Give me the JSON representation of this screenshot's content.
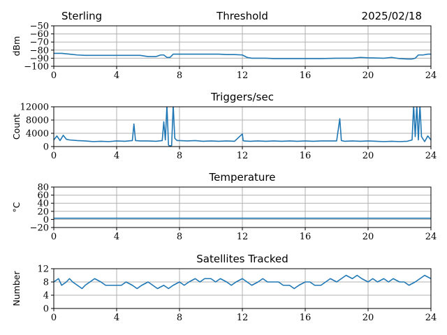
{
  "header": {
    "station": "Sterling",
    "date": "2025/02/18"
  },
  "style": {
    "line_color": "#1f77b4",
    "grid_color": "#b0b0b0"
  },
  "chart_data": [
    {
      "type": "line",
      "title": "Threshold",
      "xlabel": "",
      "ylabel": "dBm",
      "xlim": [
        0,
        24
      ],
      "ylim": [
        -100,
        -50
      ],
      "xticks": [
        0,
        4,
        8,
        12,
        16,
        20,
        24
      ],
      "yticks": [
        -100,
        -90,
        -80,
        -70,
        -60,
        -50
      ],
      "ytick_labels": [
        "−100",
        "−90",
        "−80",
        "−70",
        "−60",
        "−50"
      ],
      "grid": true,
      "series": [
        {
          "x": [
            0,
            0.5,
            1,
            1.5,
            2,
            2.5,
            3,
            3.5,
            4,
            4.5,
            5,
            5.5,
            6,
            6.5,
            6.8,
            7,
            7.2,
            7.4,
            7.6,
            7.8,
            8,
            8.5,
            9,
            9.5,
            10,
            10.5,
            11,
            11.5,
            12,
            12.3,
            12.6,
            13,
            13.5,
            14,
            15,
            16,
            17,
            18,
            19,
            19.5,
            20,
            21,
            21.5,
            22,
            22.5,
            22.8,
            23,
            23.2,
            23.5,
            23.8,
            24
          ],
          "values": [
            -84,
            -84,
            -85,
            -86,
            -86.5,
            -86.5,
            -86.5,
            -86.5,
            -86.5,
            -86.5,
            -86.5,
            -86.5,
            -88,
            -88,
            -86,
            -86,
            -89,
            -89,
            -85,
            -85,
            -85,
            -85,
            -85,
            -85,
            -85,
            -85,
            -85.5,
            -85.5,
            -86,
            -89,
            -90,
            -90,
            -90,
            -90.5,
            -90.5,
            -90.5,
            -90.5,
            -90,
            -90,
            -89,
            -89.5,
            -90,
            -89,
            -90.5,
            -91,
            -91,
            -90,
            -86,
            -86,
            -85,
            -85
          ]
        }
      ]
    },
    {
      "type": "line",
      "title": "Triggers/sec",
      "xlabel": "",
      "ylabel": "Count",
      "xlim": [
        0,
        24
      ],
      "ylim": [
        0,
        12000
      ],
      "xticks": [
        0,
        4,
        8,
        12,
        16,
        20,
        24
      ],
      "yticks": [
        0,
        4000,
        8000,
        12000
      ],
      "ytick_labels": [
        "0",
        "4000",
        "8000",
        "12000"
      ],
      "grid": true,
      "series": [
        {
          "x": [
            0,
            0.2,
            0.4,
            0.6,
            0.8,
            1,
            1.5,
            2,
            2.5,
            3,
            3.5,
            4,
            4.5,
            5,
            5.1,
            5.2,
            5.5,
            6,
            6.5,
            6.9,
            7,
            7.1,
            7.2,
            7.3,
            7.35,
            7.5,
            7.6,
            7.7,
            7.8,
            7.85,
            8,
            8.5,
            9,
            9.5,
            10,
            10.5,
            11,
            11.5,
            12,
            12.05,
            12.1,
            12.5,
            13,
            13.5,
            14,
            14.5,
            15,
            15.5,
            16,
            16.5,
            17,
            17.5,
            18,
            18.2,
            18.3,
            18.5,
            19,
            19.5,
            20,
            20.5,
            21,
            21.5,
            22,
            22.5,
            22.8,
            22.9,
            23,
            23.1,
            23.2,
            23.3,
            23.4,
            23.6,
            23.8,
            24
          ],
          "values": [
            2000,
            3200,
            1800,
            3400,
            2200,
            2000,
            1800,
            1700,
            1500,
            1600,
            1500,
            1700,
            1600,
            1800,
            6800,
            1800,
            1700,
            1700,
            1600,
            1800,
            7500,
            2000,
            12500,
            500,
            200,
            300,
            12500,
            2500,
            2000,
            1800,
            1800,
            1700,
            1800,
            1600,
            1700,
            1600,
            1700,
            1600,
            3800,
            1800,
            1700,
            1600,
            1700,
            1600,
            1700,
            1600,
            1700,
            1600,
            1700,
            1600,
            1700,
            1700,
            1700,
            8400,
            1800,
            1600,
            1700,
            1600,
            1700,
            1600,
            1500,
            1600,
            1500,
            1600,
            2000,
            12500,
            3000,
            12500,
            2000,
            12500,
            3000,
            1500,
            3200,
            2000
          ]
        }
      ]
    },
    {
      "type": "line",
      "title": "Temperature",
      "xlabel": "",
      "ylabel": "°C",
      "xlim": [
        0,
        24
      ],
      "ylim": [
        -20,
        80
      ],
      "xticks": [
        0,
        4,
        8,
        12,
        16,
        20,
        24
      ],
      "yticks": [
        -20,
        0,
        20,
        40,
        60,
        80
      ],
      "ytick_labels": [
        "−20",
        "0",
        "20",
        "40",
        "60",
        "80"
      ],
      "grid": true,
      "series": [
        {
          "x": [
            0,
            24
          ],
          "values": [
            3,
            3
          ]
        }
      ]
    },
    {
      "type": "line",
      "title": "Satellites Tracked",
      "xlabel": "",
      "ylabel": "Number",
      "xlim": [
        0,
        24
      ],
      "ylim": [
        0,
        12
      ],
      "xticks": [
        0,
        4,
        8,
        12,
        16,
        20,
        24
      ],
      "yticks": [
        0,
        4,
        8,
        12
      ],
      "ytick_labels": [
        "0",
        "4",
        "8",
        "12"
      ],
      "grid": true,
      "series": [
        {
          "x": [
            0,
            0.3,
            0.5,
            0.8,
            1,
            1.2,
            1.5,
            1.8,
            2,
            2.3,
            2.6,
            3,
            3.3,
            3.6,
            4,
            4.3,
            4.6,
            5,
            5.3,
            5.6,
            6,
            6.3,
            6.6,
            7,
            7.3,
            7.6,
            8,
            8.3,
            8.6,
            9,
            9.3,
            9.6,
            10,
            10.3,
            10.6,
            11,
            11.3,
            11.6,
            12,
            12.3,
            12.6,
            13,
            13.3,
            13.6,
            14,
            14.3,
            14.6,
            15,
            15.3,
            15.6,
            16,
            16.3,
            16.6,
            17,
            17.3,
            17.6,
            18,
            18.3,
            18.6,
            19,
            19.3,
            19.6,
            20,
            20.3,
            20.6,
            21,
            21.3,
            21.6,
            22,
            22.3,
            22.6,
            23,
            23.3,
            23.6,
            24
          ],
          "values": [
            8,
            9,
            7,
            8,
            9,
            8,
            7,
            6,
            7,
            8,
            9,
            8,
            7,
            7,
            7,
            7,
            8,
            7,
            6,
            7,
            8,
            7,
            6,
            7,
            6,
            7,
            8,
            7,
            8,
            9,
            8,
            9,
            9,
            8,
            9,
            8,
            7,
            8,
            9,
            8,
            7,
            8,
            9,
            8,
            8,
            8,
            7,
            7,
            6,
            7,
            8,
            8,
            7,
            7,
            8,
            9,
            8,
            9,
            10,
            9,
            10,
            9,
            8,
            9,
            8,
            9,
            8,
            9,
            8,
            8,
            7,
            8,
            9,
            10,
            9
          ]
        }
      ]
    }
  ]
}
